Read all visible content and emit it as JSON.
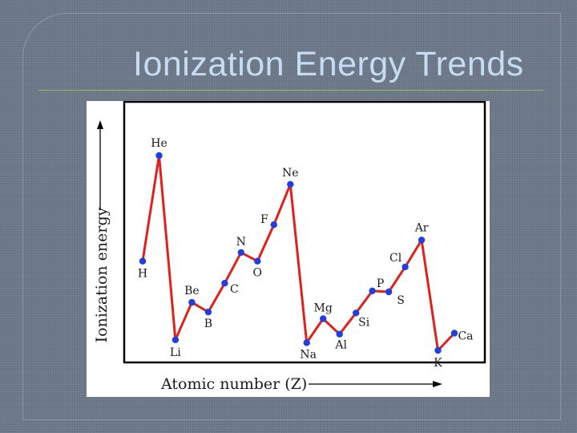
{
  "slide": {
    "title": "Ionization Energy Trends"
  },
  "colors": {
    "background": "#6d7889",
    "title": "#c5dcf2",
    "rule": "#97b85c",
    "line": "#e0201b",
    "point": "#1f3fe0"
  },
  "chart_data": {
    "type": "line",
    "title": "",
    "xlabel": "Atomic number (Z)",
    "ylabel": "Ionization energy",
    "xlim": [
      1,
      20
    ],
    "ylim": [
      0,
      26
    ],
    "grid": false,
    "legend": "none",
    "x": [
      1,
      2,
      3,
      4,
      5,
      6,
      7,
      8,
      9,
      10,
      11,
      12,
      13,
      14,
      15,
      16,
      17,
      18,
      19,
      20
    ],
    "series": [
      {
        "values": [
          13.6,
          24.6,
          5.4,
          9.3,
          8.3,
          11.3,
          14.5,
          13.6,
          17.4,
          21.6,
          5.1,
          7.6,
          6.0,
          8.2,
          10.5,
          10.4,
          13.0,
          15.8,
          4.3,
          6.1
        ],
        "labels": [
          "H",
          "He",
          "Li",
          "Be",
          "B",
          "C",
          "N",
          "O",
          "F",
          "Ne",
          "Na",
          "Mg",
          "Al",
          "Si",
          "P",
          "S",
          "Cl",
          "Ar",
          "K",
          "Ca"
        ]
      }
    ]
  }
}
